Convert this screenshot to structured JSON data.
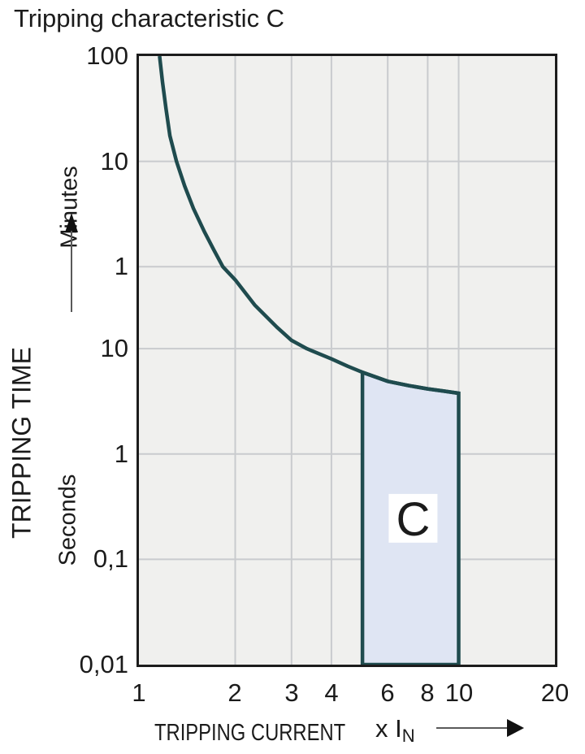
{
  "title": "Tripping characteristic C",
  "colors": {
    "curve": "#1f4b4e",
    "region_fill": "#dfe5f3",
    "region_border": "#1f4b4e",
    "plot_bg": "#f0f0ee",
    "grid": "#c9cbce",
    "frame": "#1c1c1c",
    "text": "#1b1b1b",
    "label_box_fill": "#ffffff"
  },
  "y_axis": {
    "axis_label": "TRIPPING TIME",
    "unit_upper": "Minutes",
    "unit_lower": "Seconds"
  },
  "x_axis": {
    "axis_label": "TRIPPING CURRENT",
    "multiplier_main": "x I",
    "multiplier_sub": "N"
  },
  "chart_data": {
    "type": "line",
    "title": "Tripping characteristic C",
    "xlabel": "TRIPPING CURRENT (x In)",
    "ylabel": "TRIPPING TIME",
    "x_scale": "log",
    "y_scale": "log",
    "x_range": [
      1,
      20
    ],
    "y_range_seconds": [
      0.01,
      6000
    ],
    "grid": true,
    "x_ticks": [
      {
        "label": "1",
        "v": 1
      },
      {
        "label": "2",
        "v": 2
      },
      {
        "label": "3",
        "v": 3
      },
      {
        "label": "4",
        "v": 4
      },
      {
        "label": "6",
        "v": 6
      },
      {
        "label": "8",
        "v": 8
      },
      {
        "label": "10",
        "v": 10
      },
      {
        "label": "20",
        "v": 20
      }
    ],
    "y_ticks": [
      {
        "label": "100",
        "seconds": 6000,
        "unit": "minutes"
      },
      {
        "label": "10",
        "seconds": 600,
        "unit": "minutes"
      },
      {
        "label": "1",
        "seconds": 60,
        "unit": "minutes"
      },
      {
        "label": "10",
        "seconds": 10,
        "unit": "seconds"
      },
      {
        "label": "1",
        "seconds": 1,
        "unit": "seconds"
      },
      {
        "label": "0,1",
        "seconds": 0.1,
        "unit": "seconds"
      },
      {
        "label": "0,01",
        "seconds": 0.01,
        "unit": "seconds"
      }
    ],
    "gridlines_x_at": [
      2,
      3,
      4,
      6,
      8,
      10
    ],
    "gridlines_y_at_seconds": [
      600,
      60,
      10,
      1,
      0.1
    ],
    "series": [
      {
        "name": "thermal-trip-curve",
        "points": [
          [
            1.16,
            6000
          ],
          [
            1.185,
            3400
          ],
          [
            1.215,
            1900
          ],
          [
            1.25,
            1050
          ],
          [
            1.31,
            600
          ],
          [
            1.39,
            350
          ],
          [
            1.48,
            215
          ],
          [
            1.6,
            130
          ],
          [
            1.71,
            88
          ],
          [
            1.83,
            60
          ],
          [
            2.0,
            45
          ],
          [
            2.3,
            26
          ],
          [
            2.7,
            16
          ],
          [
            3.0,
            12
          ],
          [
            3.35,
            10
          ],
          [
            4.0,
            8.0
          ],
          [
            4.5,
            6.8
          ],
          [
            5.0,
            5.97
          ],
          [
            6.0,
            4.9
          ],
          [
            7.0,
            4.45
          ],
          [
            8.0,
            4.15
          ],
          [
            9.0,
            3.95
          ],
          [
            10.0,
            3.77
          ]
        ]
      }
    ],
    "region": {
      "label": "C",
      "x_from": 5,
      "x_to": 10,
      "y_bottom": 0.01,
      "top_edge": [
        [
          5.0,
          5.97
        ],
        [
          6.0,
          4.9
        ],
        [
          7.0,
          4.45
        ],
        [
          8.0,
          4.15
        ],
        [
          9.0,
          3.95
        ],
        [
          10.0,
          3.77
        ]
      ],
      "label_pos": {
        "v": 7.2,
        "t": 0.245
      }
    }
  }
}
